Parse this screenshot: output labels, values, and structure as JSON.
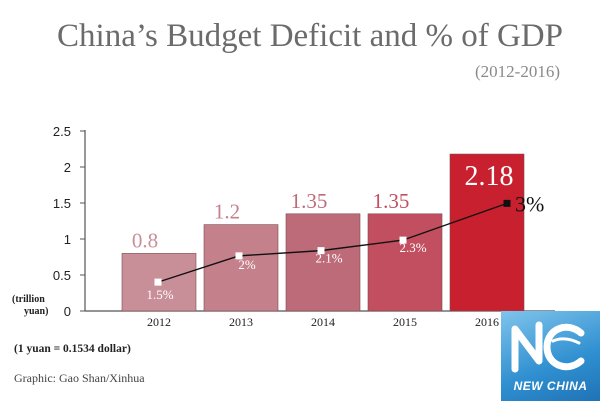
{
  "chart_data": {
    "type": "bar",
    "title": "China’s Budget Deficit and % of GDP",
    "subtitle": "(2012-2016)",
    "ylabel": "(trillion yuan)",
    "ylabel_lines": [
      "(trillion",
      "yuan)"
    ],
    "categories": [
      "2012",
      "2013",
      "2014",
      "2015",
      "2016"
    ],
    "values": [
      0.8,
      1.2,
      1.35,
      1.35,
      2.18
    ],
    "value_labels": [
      "0.8",
      "1.2",
      "1.35",
      "1.35",
      "2.18"
    ],
    "ylim": [
      0,
      2.5
    ],
    "yticks": [
      {
        "value": 0,
        "label": "0"
      },
      {
        "value": 0.5,
        "label": "0.5"
      },
      {
        "value": 1,
        "label": "1"
      },
      {
        "value": 1.5,
        "label": "1.5"
      },
      {
        "value": 2,
        "label": "2"
      },
      {
        "value": 2.5,
        "label": "2.5"
      }
    ],
    "line_series": {
      "values": [
        1.5,
        2,
        2.1,
        2.3,
        3
      ],
      "labels": [
        "1.5%",
        "2%",
        "2.1%",
        "2.3%",
        "3%"
      ]
    },
    "bar_colors": [
      "#c98f98",
      "#c4808b",
      "#bd6b78",
      "#c24f5f",
      "#c8202e"
    ],
    "grid": false
  },
  "footnote": "(1 yuan = 0.1534 dollar)",
  "credit": "Graphic: Gao Shan/Xinhua",
  "logo_text": "NEW CHINA"
}
